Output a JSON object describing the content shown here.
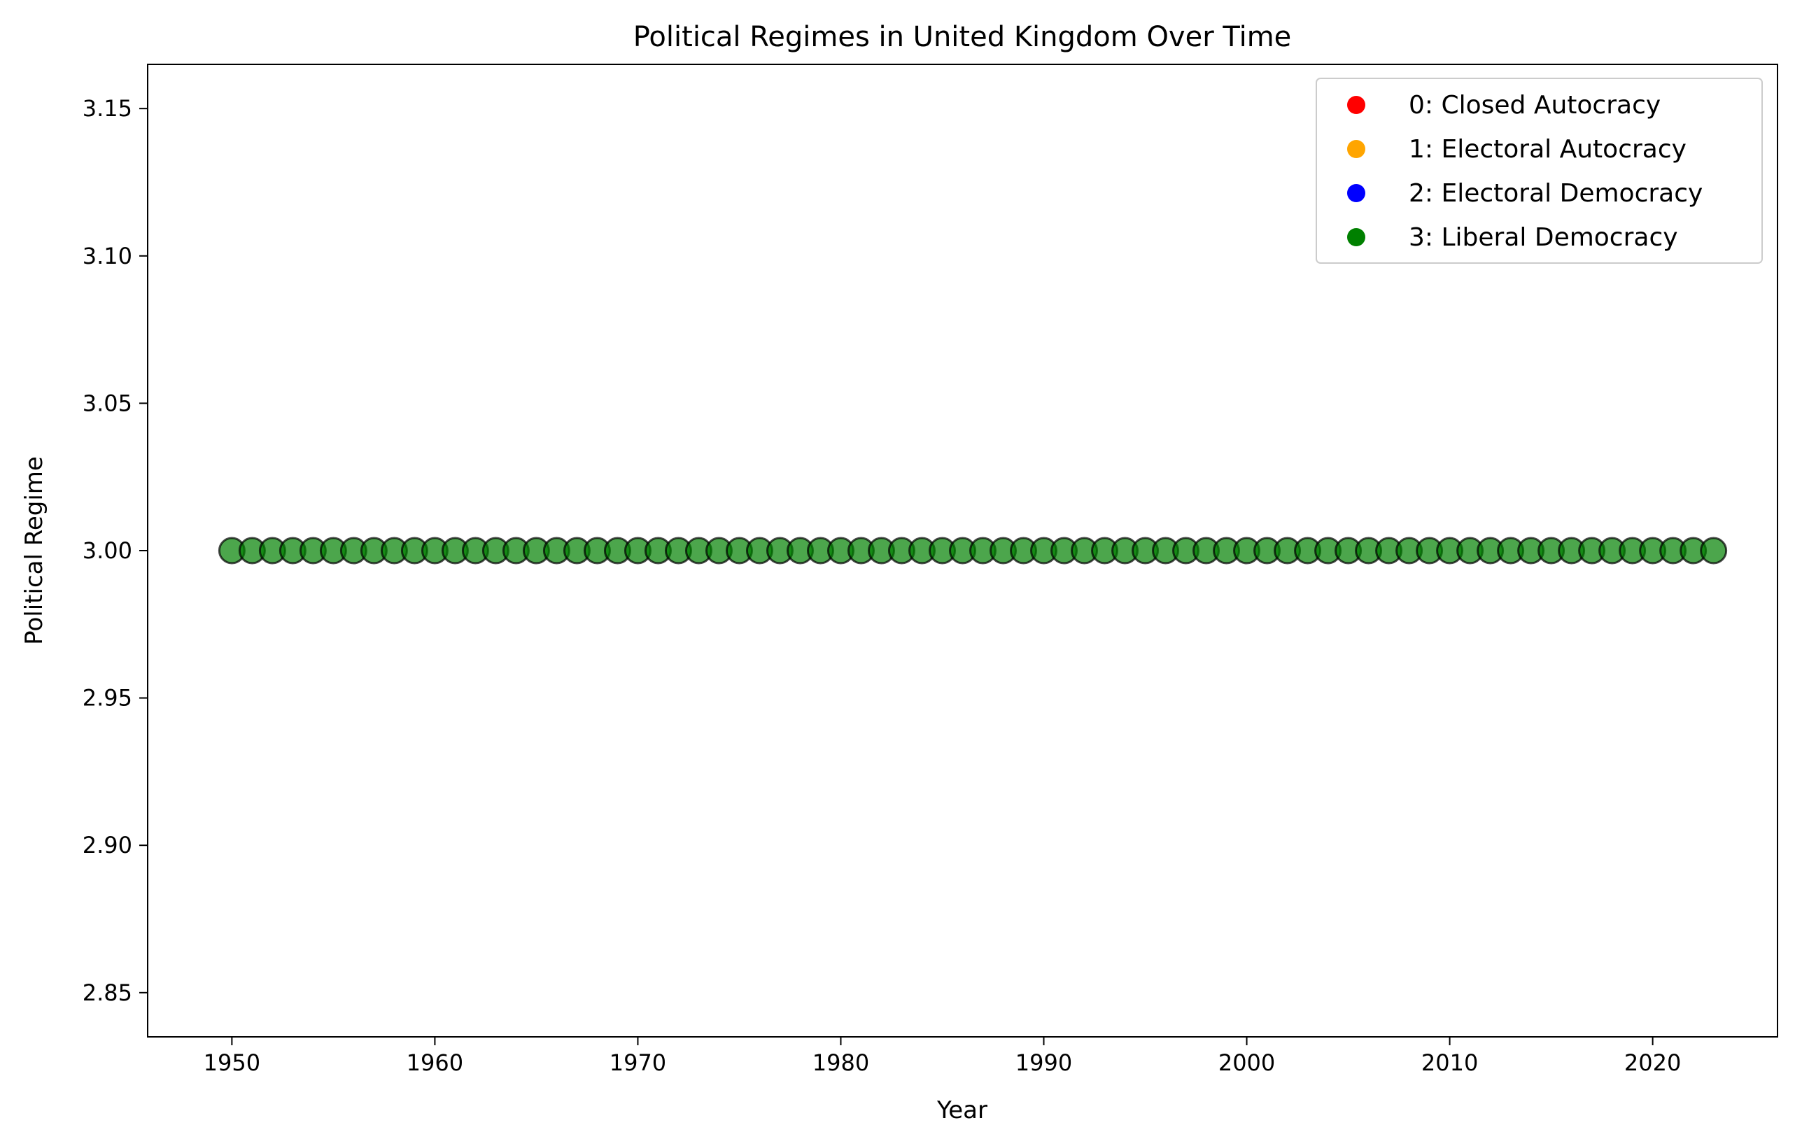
{
  "chart_data": {
    "type": "scatter",
    "title": "Political Regimes in United Kingdom Over Time",
    "xlabel": "Year",
    "ylabel": "Political Regime",
    "xlim": [
      1945.85,
      2026.15
    ],
    "ylim": [
      2.835,
      3.165
    ],
    "xticks": [
      1950,
      1960,
      1970,
      1980,
      1990,
      2000,
      2010,
      2020
    ],
    "xtick_labels": [
      "1950",
      "1960",
      "1970",
      "1980",
      "1990",
      "2000",
      "2010",
      "2020"
    ],
    "yticks": [
      2.85,
      2.9,
      2.95,
      3.0,
      3.05,
      3.1,
      3.15
    ],
    "ytick_labels": [
      "2.85",
      "2.90",
      "2.95",
      "3.00",
      "3.05",
      "3.10",
      "3.15"
    ],
    "grid": false,
    "legend_position": "upper-right",
    "legend": [
      {
        "label": "0: Closed Autocracy",
        "color": "#ff0000"
      },
      {
        "label": "1: Electoral Autocracy",
        "color": "#ffa500"
      },
      {
        "label": "2: Electoral Democracy",
        "color": "#0000ff"
      },
      {
        "label": "3: Liberal Democracy",
        "color": "#008000"
      }
    ],
    "marker_color": "#008000",
    "marker_edge_color": "#000000",
    "marker_alpha": 0.7,
    "series": [
      {
        "x": [
          1950,
          1951,
          1952,
          1953,
          1954,
          1955,
          1956,
          1957,
          1958,
          1959,
          1960,
          1961,
          1962,
          1963,
          1964,
          1965,
          1966,
          1967,
          1968,
          1969,
          1970,
          1971,
          1972,
          1973,
          1974,
          1975,
          1976,
          1977,
          1978,
          1979,
          1980,
          1981,
          1982,
          1983,
          1984,
          1985,
          1986,
          1987,
          1988,
          1989,
          1990,
          1991,
          1992,
          1993,
          1994,
          1995,
          1996,
          1997,
          1998,
          1999,
          2000,
          2001,
          2002,
          2003,
          2004,
          2005,
          2006,
          2007,
          2008,
          2009,
          2010,
          2011,
          2012,
          2013,
          2014,
          2015,
          2016,
          2017,
          2018,
          2019,
          2020,
          2021,
          2022,
          2023
        ],
        "y": [
          3,
          3,
          3,
          3,
          3,
          3,
          3,
          3,
          3,
          3,
          3,
          3,
          3,
          3,
          3,
          3,
          3,
          3,
          3,
          3,
          3,
          3,
          3,
          3,
          3,
          3,
          3,
          3,
          3,
          3,
          3,
          3,
          3,
          3,
          3,
          3,
          3,
          3,
          3,
          3,
          3,
          3,
          3,
          3,
          3,
          3,
          3,
          3,
          3,
          3,
          3,
          3,
          3,
          3,
          3,
          3,
          3,
          3,
          3,
          3,
          3,
          3,
          3,
          3,
          3,
          3,
          3,
          3,
          3,
          3,
          3,
          3,
          3,
          3
        ]
      }
    ]
  }
}
